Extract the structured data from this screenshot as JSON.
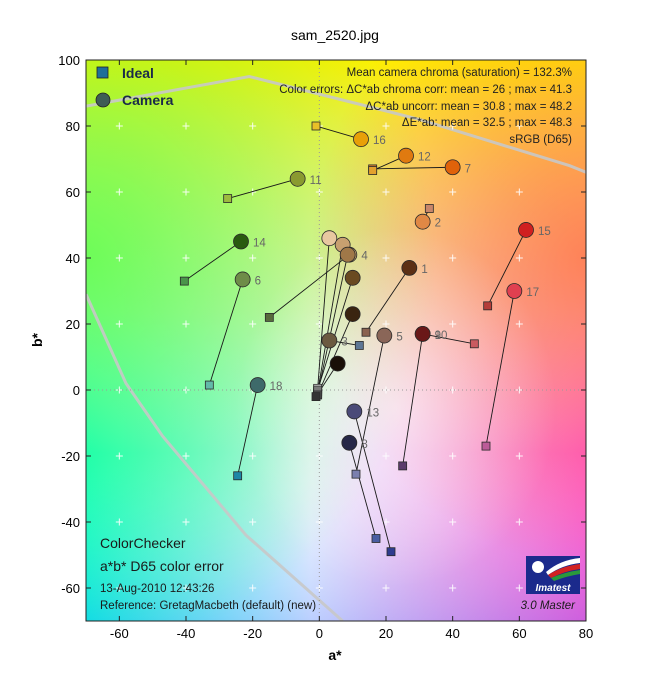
{
  "title": "sam_2520.jpg",
  "axes": {
    "xlabel": "a*",
    "ylabel": "b*",
    "xlim": [
      -70,
      80
    ],
    "ylim": [
      -70,
      100
    ],
    "xticks": [
      "-60",
      "-40",
      "-20",
      "0",
      "20",
      "40",
      "60",
      "80"
    ],
    "yticks": [
      "-60",
      "-40",
      "-20",
      "0",
      "20",
      "40",
      "60",
      "80",
      "100"
    ]
  },
  "legend": {
    "ideal_label": "Ideal",
    "camera_label": "Camera",
    "ideal_color": "#1f6f9a",
    "camera_color": "#3e5d55"
  },
  "stats": {
    "line1": "Mean camera chroma (saturation) = 132.3%",
    "line2": "Color errors: ΔC*ab chroma corr:  mean = 26 ;  max = 41.3",
    "line3": "ΔC*ab uncorr:  mean = 30.8 ;  max = 48.2",
    "line4": "ΔE*ab:  mean = 32.5 ;  max = 48.3",
    "line5": "sRGB (D65)"
  },
  "footer": {
    "name": "ColorChecker",
    "subtitle": "a*b* D65 color error",
    "date": "13-Aug-2010 12:43:26",
    "reference": "Reference: GretagMacbeth (default) (new)",
    "logo_text": "Imatest",
    "version": "3.0  Master"
  },
  "chart_data": {
    "type": "scatter",
    "title": "sam_2520.jpg",
    "xlabel": "a*",
    "ylabel": "b*",
    "xlim": [
      -70,
      80
    ],
    "ylim": [
      -70,
      100
    ],
    "grid": true,
    "legend_placement": "top-left",
    "series": [
      {
        "name": "Ideal",
        "marker": "square"
      },
      {
        "name": "Camera",
        "marker": "circle"
      }
    ],
    "patches": [
      {
        "id": "1",
        "ideal": [
          14,
          17.5
        ],
        "camera": [
          27,
          37
        ],
        "ideal_color": "#8a6250",
        "camera_color": "#5c3015"
      },
      {
        "id": "2",
        "ideal": [
          33,
          55
        ],
        "camera": [
          31,
          51
        ],
        "ideal_color": "#c8866a",
        "camera_color": "#e08845"
      },
      {
        "id": "3",
        "ideal": [
          12,
          13.5
        ],
        "camera": [
          3,
          15
        ],
        "ideal_color": "#5e7795",
        "camera_color": "#6b5a40"
      },
      {
        "id": "4",
        "ideal": [
          -15,
          22
        ],
        "camera": [
          9,
          41
        ],
        "ideal_color": "#586a3c",
        "camera_color": "#c4a068"
      },
      {
        "id": "5",
        "ideal": [
          11,
          -25.5
        ],
        "camera": [
          19.5,
          16.5
        ],
        "ideal_color": "#7b7fae",
        "camera_color": "#8a6658"
      },
      {
        "id": "6",
        "ideal": [
          -33,
          1.5
        ],
        "camera": [
          -23,
          33.5
        ],
        "ideal_color": "#62b9a8",
        "camera_color": "#6e8c48"
      },
      {
        "id": "7",
        "ideal": [
          16,
          67
        ],
        "camera": [
          40,
          67.5
        ],
        "ideal_color": "#e0822f",
        "camera_color": "#e0620a"
      },
      {
        "id": "8",
        "ideal": [
          17,
          -45
        ],
        "camera": [
          9,
          -16
        ],
        "ideal_color": "#4a5da2",
        "camera_color": "#262848"
      },
      {
        "id": "9",
        "ideal": [
          46.5,
          14
        ],
        "camera": [
          31,
          17
        ],
        "ideal_color": "#c95a60",
        "camera_color": "#7a1818"
      },
      {
        "id": "10",
        "ideal": [
          25,
          -23
        ],
        "camera": [
          31,
          17
        ],
        "ideal_color": "#5b3c6b",
        "camera_color": "#6a1818"
      },
      {
        "id": "11",
        "ideal": [
          -27.5,
          58
        ],
        "camera": [
          -6.5,
          64
        ],
        "ideal_color": "#9dbb3f",
        "camera_color": "#8a9a30"
      },
      {
        "id": "12",
        "ideal": [
          16,
          66.5
        ],
        "camera": [
          26,
          71
        ],
        "ideal_color": "#e3a12e",
        "camera_color": "#e07a10"
      },
      {
        "id": "13",
        "ideal": [
          21.5,
          -49
        ],
        "camera": [
          10.5,
          -6.5
        ],
        "ideal_color": "#2e3c8f",
        "camera_color": "#4a4a78"
      },
      {
        "id": "14",
        "ideal": [
          -40.5,
          33
        ],
        "camera": [
          -23.5,
          45
        ],
        "ideal_color": "#4a944a",
        "camera_color": "#2a5a10"
      },
      {
        "id": "15",
        "ideal": [
          50.5,
          25.5
        ],
        "camera": [
          62,
          48.5
        ],
        "ideal_color": "#b43d39",
        "camera_color": "#d02020"
      },
      {
        "id": "16",
        "ideal": [
          -1,
          80
        ],
        "camera": [
          12.5,
          76
        ],
        "ideal_color": "#eac028",
        "camera_color": "#e8a008"
      },
      {
        "id": "17",
        "ideal": [
          50,
          -17
        ],
        "camera": [
          58.5,
          30
        ],
        "ideal_color": "#bc5b98",
        "camera_color": "#e04050"
      },
      {
        "id": "18",
        "ideal": [
          -24.5,
          -26
        ],
        "camera": [
          -18.5,
          1.5
        ],
        "ideal_color": "#1e86a6",
        "camera_color": "#3e6a6a"
      },
      {
        "id": "",
        "ideal": [
          -0.5,
          0.5
        ],
        "camera": [
          3,
          46
        ],
        "ideal_color": "#f2f2f2",
        "camera_color": "#e8c8a0"
      },
      {
        "id": "",
        "ideal": [
          -0.5,
          -0.5
        ],
        "camera": [
          7,
          44
        ],
        "ideal_color": "#c8c8c8",
        "camera_color": "#c8a070"
      },
      {
        "id": "",
        "ideal": [
          -0.5,
          -1
        ],
        "camera": [
          8.5,
          41
        ],
        "ideal_color": "#a0a0a0",
        "camera_color": "#a07848"
      },
      {
        "id": "",
        "ideal": [
          -0.5,
          0
        ],
        "camera": [
          10,
          34
        ],
        "ideal_color": "#7a7a7a",
        "camera_color": "#6a4a20"
      },
      {
        "id": "",
        "ideal": [
          -0.5,
          -1.5
        ],
        "camera": [
          10,
          23
        ],
        "ideal_color": "#555555",
        "camera_color": "#3a2410"
      },
      {
        "id": "",
        "ideal": [
          -1,
          -2
        ],
        "camera": [
          5.5,
          8
        ],
        "ideal_color": "#343434",
        "camera_color": "#1a1008"
      }
    ],
    "gamut_boundary": [
      [
        -70,
        29
      ],
      [
        -58,
        2
      ],
      [
        -47,
        -14
      ],
      [
        -22,
        -44
      ],
      [
        7,
        -70
      ]
    ],
    "outer_boundary": [
      [
        -70,
        86
      ],
      [
        -21,
        95
      ],
      [
        30,
        82
      ],
      [
        75,
        68
      ],
      [
        80,
        66
      ]
    ]
  }
}
